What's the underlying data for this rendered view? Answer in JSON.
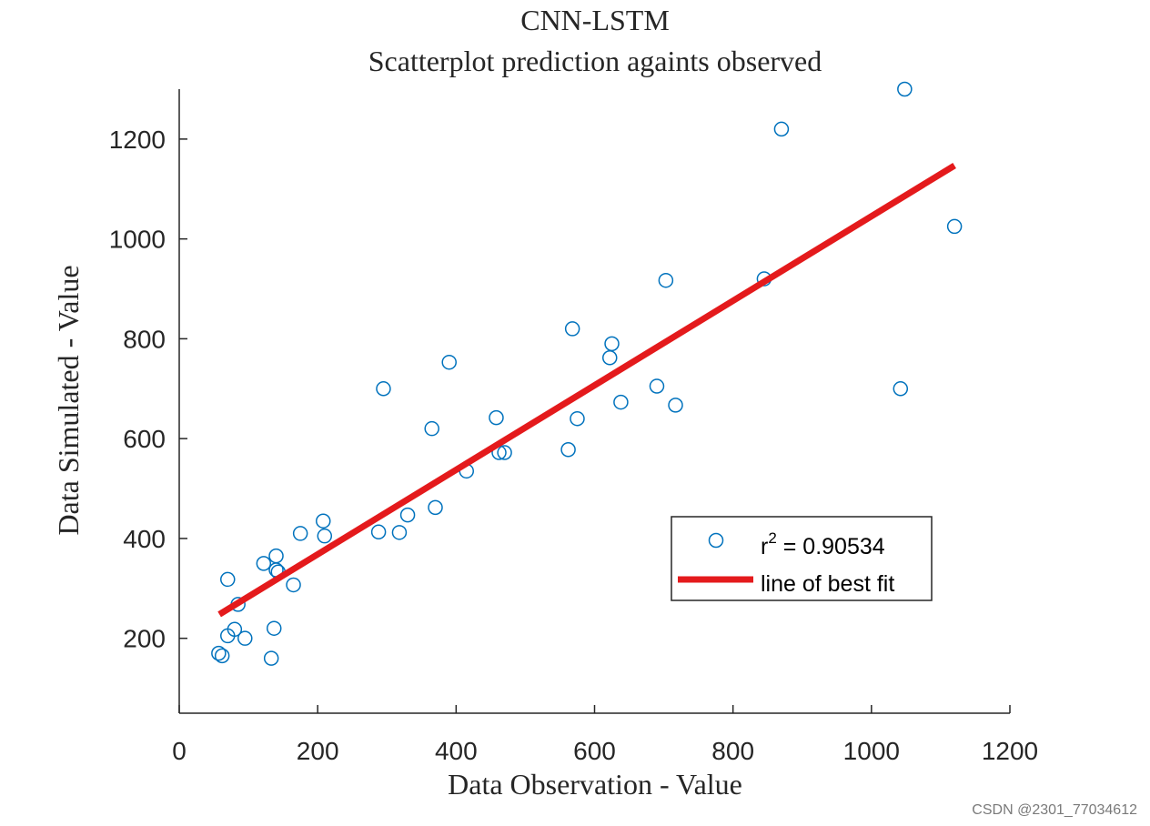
{
  "watermark": "CSDN @2301_77034612",
  "chart_data": {
    "type": "scatter",
    "title": [
      "CNN-LSTM",
      "Scatterplot prediction againts observed"
    ],
    "xlabel": "Data Observation - Value",
    "ylabel": "Data Simulated - Value",
    "xlim": [
      0,
      1200
    ],
    "ylim": [
      50,
      1300
    ],
    "xticks": [
      0,
      200,
      400,
      600,
      800,
      1000,
      1200
    ],
    "yticks": [
      200,
      400,
      600,
      800,
      1000,
      1200
    ],
    "grid": false,
    "legend_position": "lower-right",
    "series": [
      {
        "name": "r² = 0.90534",
        "name_base": "r",
        "name_sup": "2",
        "name_rest": " = 0.90534",
        "marker": "open-circle",
        "color": "#0072BD",
        "points": [
          [
            57,
            170
          ],
          [
            62,
            165
          ],
          [
            70,
            318
          ],
          [
            70,
            205
          ],
          [
            80,
            218
          ],
          [
            85,
            268
          ],
          [
            95,
            200
          ],
          [
            122,
            350
          ],
          [
            133,
            160
          ],
          [
            137,
            220
          ],
          [
            140,
            365
          ],
          [
            140,
            337
          ],
          [
            143,
            333
          ],
          [
            165,
            307
          ],
          [
            175,
            410
          ],
          [
            208,
            435
          ],
          [
            210,
            405
          ],
          [
            288,
            413
          ],
          [
            295,
            700
          ],
          [
            318,
            412
          ],
          [
            330,
            447
          ],
          [
            365,
            620
          ],
          [
            370,
            462
          ],
          [
            390,
            753
          ],
          [
            415,
            535
          ],
          [
            458,
            642
          ],
          [
            462,
            572
          ],
          [
            470,
            572
          ],
          [
            562,
            578
          ],
          [
            568,
            820
          ],
          [
            575,
            640
          ],
          [
            622,
            762
          ],
          [
            625,
            790
          ],
          [
            638,
            673
          ],
          [
            690,
            705
          ],
          [
            703,
            917
          ],
          [
            717,
            667
          ],
          [
            845,
            920
          ],
          [
            870,
            1220
          ],
          [
            1042,
            700
          ],
          [
            1048,
            1300
          ],
          [
            1120,
            1025
          ]
        ]
      },
      {
        "name": "line of best fit",
        "type": "line",
        "color": "#E41A1C",
        "x": [
          58,
          1120
        ],
        "y": [
          248,
          1147
        ]
      }
    ]
  }
}
